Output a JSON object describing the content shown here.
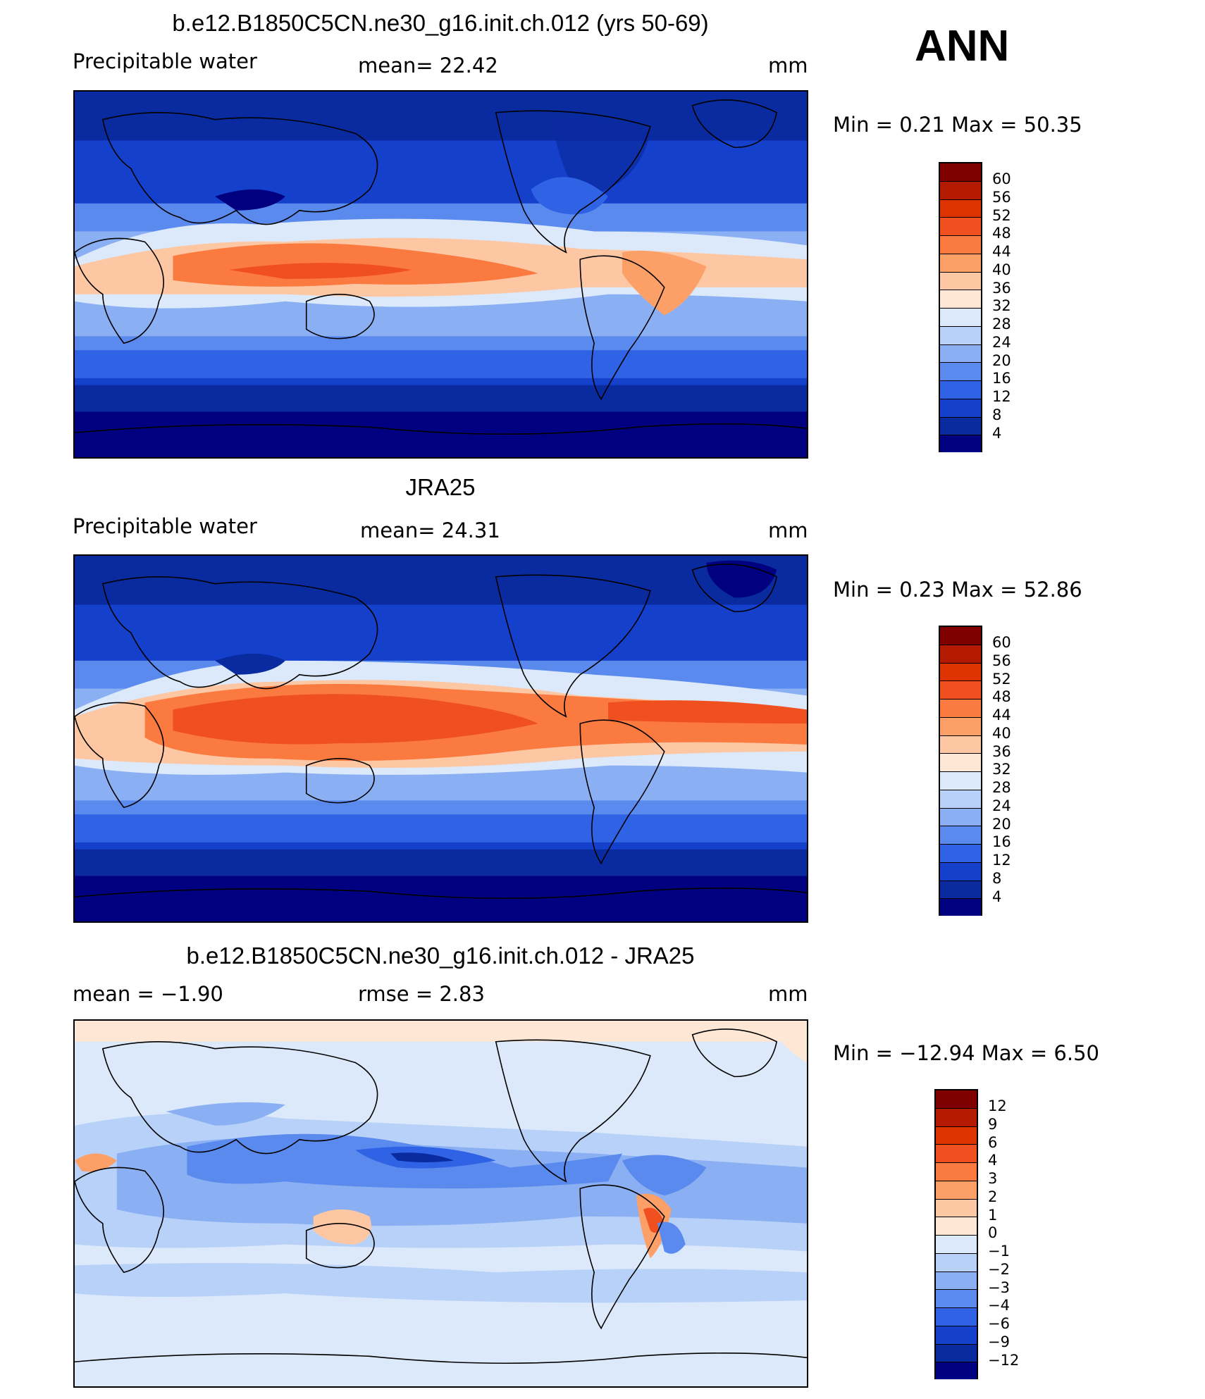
{
  "season": "ANN",
  "panels": [
    {
      "title": "b.e12.B1850C5CN.ne30_g16.init.ch.012 (yrs 50-69)",
      "left": "Precipitable  water",
      "middle": "mean=   22.42",
      "units": "mm",
      "minmax": "Min  =     0.21  Max  =    50.35",
      "min": 0.21,
      "max": 50.35,
      "mean": 22.42
    },
    {
      "title": "JRA25",
      "left": "Precipitable  water",
      "middle": "mean=   24.31",
      "units": "mm",
      "minmax": "Min  =     0.23  Max  =    52.86",
      "min": 0.23,
      "max": 52.86,
      "mean": 24.31
    },
    {
      "title": "b.e12.B1850C5CN.ne30_g16.init.ch.012 - JRA25",
      "left": "mean  =    −1.90",
      "middle": "rmse  =     2.83",
      "units": "mm",
      "minmax": "Min  =  −12.94  Max  =     6.50",
      "min": -12.94,
      "max": 6.5,
      "mean": -1.9,
      "rmse": 2.83
    }
  ],
  "colorbars": [
    {
      "labels": [
        "60",
        "56",
        "52",
        "48",
        "44",
        "40",
        "36",
        "32",
        "28",
        "24",
        "20",
        "16",
        "12",
        "8",
        "4"
      ],
      "colors": [
        "#800000",
        "#b31a00",
        "#dd3300",
        "#f05020",
        "#fa7a40",
        "#fca068",
        "#fdc7a3",
        "#fee8d5",
        "#dbe9fb",
        "#b8d1f8",
        "#8ab0f3",
        "#5a8aee",
        "#2f62e4",
        "#1440cc",
        "#0a2aa0",
        "#000080"
      ]
    },
    {
      "labels": [
        "60",
        "56",
        "52",
        "48",
        "44",
        "40",
        "36",
        "32",
        "28",
        "24",
        "20",
        "16",
        "12",
        "8",
        "4"
      ],
      "colors": [
        "#800000",
        "#b31a00",
        "#dd3300",
        "#f05020",
        "#fa7a40",
        "#fca068",
        "#fdc7a3",
        "#fee8d5",
        "#dbe9fb",
        "#b8d1f8",
        "#8ab0f3",
        "#5a8aee",
        "#2f62e4",
        "#1440cc",
        "#0a2aa0",
        "#000080"
      ]
    },
    {
      "labels": [
        "12",
        "9",
        "6",
        "4",
        "3",
        "2",
        "1",
        "0",
        "−1",
        "−2",
        "−3",
        "−4",
        "−6",
        "−9",
        "−12"
      ],
      "colors": [
        "#800000",
        "#b31a00",
        "#dd3300",
        "#f05020",
        "#fa7a40",
        "#fca068",
        "#fdc7a3",
        "#fee8d5",
        "#dbe9fb",
        "#b8d1f8",
        "#8ab0f3",
        "#5a8aee",
        "#2f62e4",
        "#1440cc",
        "#0a2aa0",
        "#000080"
      ]
    }
  ]
}
